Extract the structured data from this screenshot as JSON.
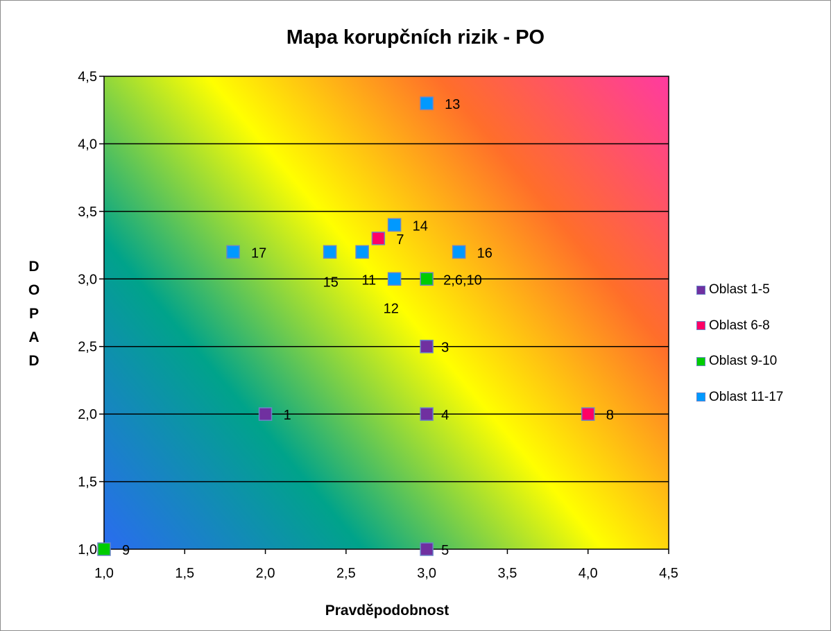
{
  "chart_data": {
    "type": "scatter",
    "title": "Mapa korupčních rizik - PO",
    "xlabel": "Pravděpodobnost",
    "ylabel": "DOPAD",
    "xlim": [
      1.0,
      4.5
    ],
    "ylim": [
      1.0,
      4.5
    ],
    "x_ticks": [
      "1,0",
      "1,5",
      "2,0",
      "2,5",
      "3,0",
      "3,5",
      "4,0",
      "4,5"
    ],
    "y_ticks": [
      "1,0",
      "1,5",
      "2,0",
      "2,5",
      "3,0",
      "3,5",
      "4,0",
      "4,5"
    ],
    "grid": "horizontal",
    "legend_position": "right",
    "background": "diagonal gradient blue-green-yellow-orange-pink",
    "series": [
      {
        "name": "Oblast 1-5",
        "color": "#7030a0",
        "points": [
          {
            "x": 2.0,
            "y": 2.0,
            "label": "1"
          },
          {
            "x": 3.0,
            "y": 2.5,
            "label": "3"
          },
          {
            "x": 3.0,
            "y": 2.0,
            "label": "4"
          },
          {
            "x": 3.0,
            "y": 1.0,
            "label": "5"
          }
        ]
      },
      {
        "name": "Oblast 6-8",
        "color": "#ff0066",
        "points": [
          {
            "x": 2.7,
            "y": 3.3,
            "label": "7"
          },
          {
            "x": 4.0,
            "y": 2.0,
            "label": "8"
          }
        ]
      },
      {
        "name": "Oblast 9-10",
        "color": "#00cc00",
        "points": [
          {
            "x": 3.0,
            "y": 3.0,
            "label": "2,6,10"
          },
          {
            "x": 1.0,
            "y": 1.0,
            "label": "9"
          }
        ]
      },
      {
        "name": "Oblast 11-17",
        "color": "#0099ff",
        "points": [
          {
            "x": 2.6,
            "y": 3.2,
            "label": "11"
          },
          {
            "x": 2.8,
            "y": 3.0,
            "label": "12"
          },
          {
            "x": 3.0,
            "y": 4.3,
            "label": "13"
          },
          {
            "x": 2.8,
            "y": 3.4,
            "label": "14"
          },
          {
            "x": 2.4,
            "y": 3.2,
            "label": "15"
          },
          {
            "x": 3.2,
            "y": 3.2,
            "label": "16"
          },
          {
            "x": 1.8,
            "y": 3.2,
            "label": "17"
          }
        ]
      }
    ]
  }
}
